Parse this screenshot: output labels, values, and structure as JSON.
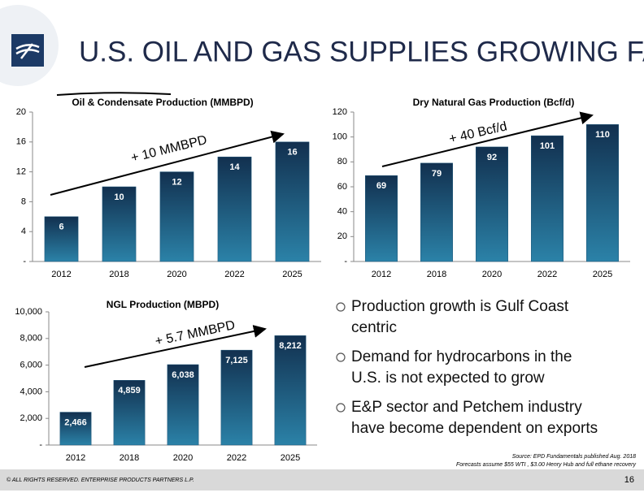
{
  "header": {
    "title": "U.S. OIL AND GAS SUPPLIES GROWING FAST"
  },
  "chart_data": [
    {
      "type": "bar",
      "title": "Oil & Condensate Production (MMBPD)",
      "categories": [
        "2012",
        "2018",
        "2020",
        "2022",
        "2025"
      ],
      "values": [
        6,
        10,
        12,
        14,
        16
      ],
      "color": "#1d5578",
      "ylim": [
        0,
        20
      ],
      "yticks": [
        {
          "value": 0,
          "label": "-"
        },
        4,
        8,
        12,
        16,
        20
      ],
      "annotation": "+ 10 MMBPD"
    },
    {
      "type": "bar",
      "title": "Dry Natural Gas Production (Bcf/d)",
      "categories": [
        "2012",
        "2018",
        "2020",
        "2022",
        "2025"
      ],
      "values": [
        69,
        79,
        92,
        101,
        110
      ],
      "color": "#1d5578",
      "ylim": [
        0,
        120
      ],
      "yticks": [
        {
          "value": 0,
          "label": "-"
        },
        20,
        40,
        60,
        80,
        100,
        120
      ],
      "annotation": "+ 40 Bcf/d"
    },
    {
      "type": "bar",
      "title": "NGL Production (MBPD)",
      "categories": [
        "2012",
        "2018",
        "2020",
        "2022",
        "2025"
      ],
      "values": [
        2466,
        4859,
        6038,
        7125,
        8212
      ],
      "value_labels": [
        "2,466",
        "4,859",
        "6,038",
        "7,125",
        "8,212"
      ],
      "color": "#1d5578",
      "ylim": [
        0,
        10000
      ],
      "yticks": [
        {
          "value": 0,
          "label": "-"
        },
        {
          "value": 2000,
          "label": "2,000"
        },
        {
          "value": 4000,
          "label": "4,000"
        },
        {
          "value": 6000,
          "label": "6,000"
        },
        {
          "value": 8000,
          "label": "8,000"
        },
        {
          "value": 10000,
          "label": "10,000"
        }
      ],
      "annotation": "+ 5.7 MMBPD"
    }
  ],
  "bullets": [
    [
      "Production growth is Gulf Coast",
      "centric"
    ],
    [
      "Demand for hydrocarbons in the",
      "U.S. is not expected to grow"
    ],
    [
      "E&P sector and Petchem industry",
      "have become dependent on exports"
    ]
  ],
  "source": [
    "Source:  EPD Fundamentals published Aug. 2018",
    "Forecasts assume $55 WTI , $3.00 Henry Hub and full ethane recovery"
  ],
  "footer": {
    "copyright": "© ALL RIGHTS RESERVED. ENTERPRISE PRODUCTS PARTNERS L.P.",
    "page": "16"
  }
}
